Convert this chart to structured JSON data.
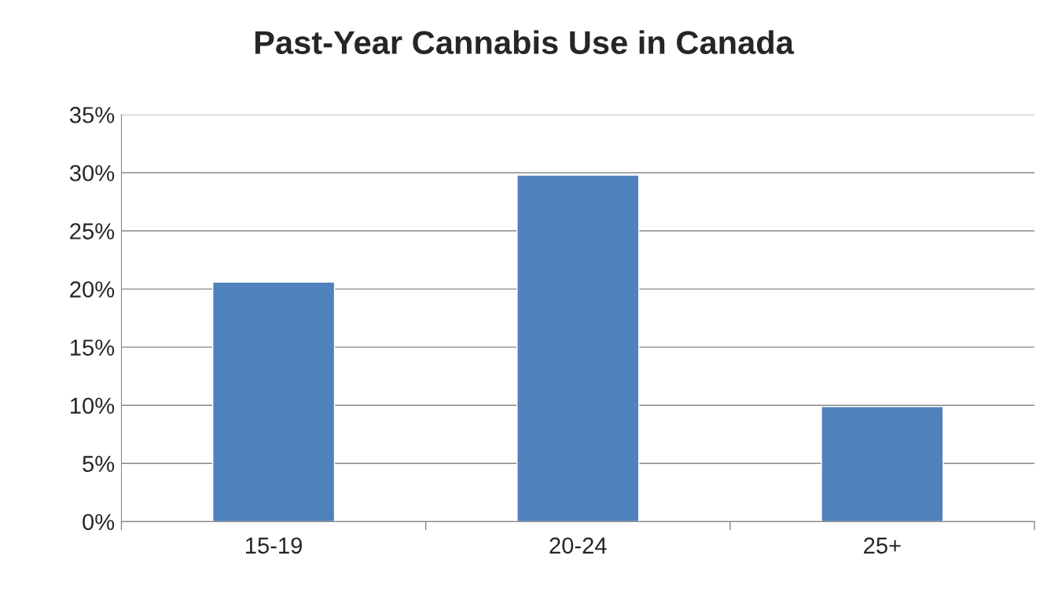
{
  "chart_data": {
    "type": "bar",
    "title": "Past-Year Cannabis Use in Canada",
    "categories": [
      "15-19",
      "20-24",
      "25+"
    ],
    "values": [
      20.6,
      29.8,
      9.9
    ],
    "color": "#4f81bd",
    "ylim": [
      0,
      35
    ],
    "yticks": [
      {
        "value": 0,
        "label": "0%"
      },
      {
        "value": 5,
        "label": "5%"
      },
      {
        "value": 10,
        "label": "10%"
      },
      {
        "value": 15,
        "label": "15%"
      },
      {
        "value": 20,
        "label": "20%"
      },
      {
        "value": 25,
        "label": "25%"
      },
      {
        "value": 30,
        "label": "30%"
      },
      {
        "value": 35,
        "label": "35%"
      }
    ],
    "grid": "y",
    "legend": false
  }
}
